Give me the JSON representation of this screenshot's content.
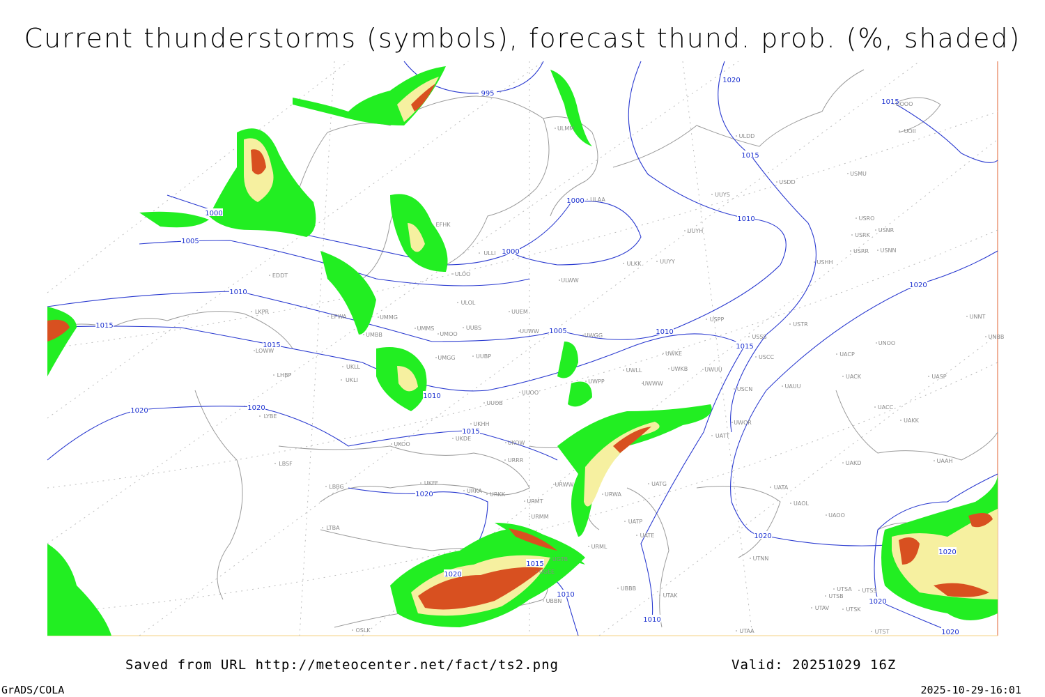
{
  "title": "Current thunderstorms (symbols), forecast thund. prob. (%, shaded)",
  "footer": {
    "saved": "Saved from URL http://meteocenter.net/fact/ts2.png",
    "valid": "Valid: 20251029 16Z",
    "software": "GrADS/COLA",
    "timestamp": "2025-10-29-16:01"
  },
  "isobar_labels": [
    "995",
    "1000",
    "1005",
    "1010",
    "1015",
    "1015",
    "1020",
    "1020",
    "1000",
    "1000",
    "1005",
    "1010",
    "1015",
    "1020",
    "1015",
    "1020",
    "1015",
    "1010",
    "1010",
    "1015",
    "1020",
    "1020",
    "1015",
    "1010",
    "1010",
    "1020",
    "1020",
    "1020",
    "1020"
  ],
  "stations": [
    "ULMM",
    "ULDD",
    "USDD",
    "USMU",
    "UOII",
    "UOOO",
    "ULAA",
    "UUYS",
    "UUYH",
    "USRO",
    "USRK",
    "USNR",
    "USRR",
    "USNN",
    "USHH",
    "ULKK",
    "UUYY",
    "ULLI",
    "EFHK",
    "ULOO",
    "ULWW",
    "ULOL",
    "UUEM",
    "EDDT",
    "EPWA",
    "LKPR",
    "UMMG",
    "UMMS",
    "UMOO",
    "UUBS",
    "UUWW",
    "UWGG",
    "UMBB",
    "USPP",
    "USTR",
    "USSS",
    "UNOO",
    "UNNT",
    "UNBB",
    "LOWW",
    "LHBP",
    "UKLL",
    "UKLI",
    "UMGG",
    "UUBP",
    "UWKE",
    "UWKB",
    "UWUU",
    "UWLL",
    "USCC",
    "USCN",
    "UACP",
    "UACK",
    "UASP",
    "UWPP",
    "UWWW",
    "UUOO",
    "UUOB",
    "UAUU",
    "LYBE",
    "UKHH",
    "UKDE",
    "UKOO",
    "UKOW",
    "UWOR",
    "UATT",
    "UACC",
    "UAKK",
    "LBSF",
    "URRR",
    "UAKD",
    "UAAH",
    "LBBG",
    "UKFF",
    "URKA",
    "URKK",
    "URWW",
    "UATG",
    "UATA",
    "UAOL",
    "UAOO",
    "URMT",
    "URMM",
    "URWA",
    "UATP",
    "UATE",
    "LTBA",
    "URML",
    "UGTB",
    "UBBB",
    "UTAK",
    "UGEE",
    "UBBN",
    "UTNN",
    "UTSA",
    "UTSS",
    "UTSB",
    "UTAV",
    "UTSK",
    "UTAA",
    "UTST",
    "OSLK"
  ]
}
